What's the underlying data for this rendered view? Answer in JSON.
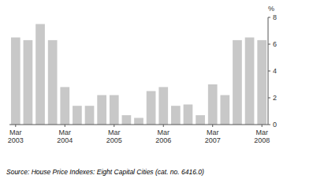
{
  "chart_data": {
    "type": "bar",
    "ylabel": "%",
    "source": "Source: House Price Indexes: Eight Capital Cities (cat.  no.  6416.0)",
    "categories": [
      "Mar\n2003",
      null,
      null,
      null,
      "Mar\n2004",
      null,
      null,
      null,
      "Mar\n2005",
      null,
      null,
      null,
      "Mar\n2006",
      null,
      null,
      null,
      "Mar\n2007",
      null,
      null,
      null,
      "Mar\n2008"
    ],
    "values": [
      6.5,
      6.3,
      7.5,
      6.3,
      2.8,
      1.4,
      1.4,
      2.2,
      2.2,
      0.7,
      0.5,
      2.5,
      2.8,
      1.4,
      1.5,
      0.7,
      3.0,
      2.2,
      6.3,
      6.5,
      6.3
    ],
    "color": "#c8c8c8",
    "ylim": [
      0,
      8
    ],
    "yticks": [
      0,
      2,
      4,
      6,
      8
    ],
    "grid": false
  }
}
